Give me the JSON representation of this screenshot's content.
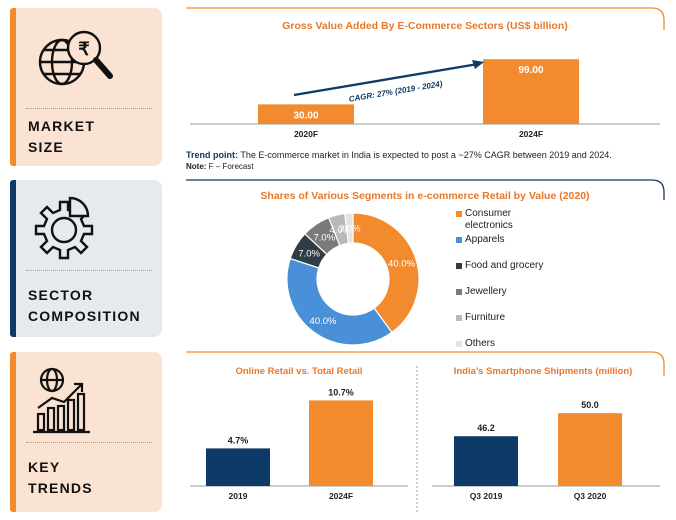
{
  "colors": {
    "orange": "#f28a2e",
    "blue": "#0d3a66",
    "lightblue": "#4a90d9",
    "peach": "#fbe3d3",
    "lightgray": "#e6e9ee",
    "dark": "#2f3d48",
    "gray": "#7a7a7a",
    "lgray": "#b9b9b9"
  },
  "sections": {
    "market": {
      "line1": "MARKET",
      "line2": "SIZE",
      "icon": "search-rupee-globe-icon"
    },
    "sector": {
      "line1": "SECTOR",
      "line2": "COMPOSITION",
      "icon": "gear-pie-icon"
    },
    "trends": {
      "line1": "KEY",
      "line2": "TRENDS",
      "icon": "globe-bar-growth-icon"
    }
  },
  "market": {
    "title": "Gross Value Added By E-Commerce Sectors (US$ billion)",
    "cagr": "CAGR: 27% (2019 - 2024)",
    "trend_label": "Trend point:",
    "trend_text": " The E-commerce market in India is expected to post a ~27% CAGR  between 2019 and 2024.",
    "note_label": "Note:",
    "note_text": " F – Forecast"
  },
  "sector": {
    "title": "Shares of Various Segments in e-commerce Retail by Value (2020)"
  },
  "online": {
    "title": "Online Retail vs. Total Retail"
  },
  "phones": {
    "title": "India’s Smartphone Shipments (million)"
  },
  "chart_data": [
    {
      "type": "bar",
      "title": "Gross Value Added By E-Commerce Sectors (US$ billion)",
      "categories": [
        "2020F",
        "2024F"
      ],
      "values": [
        30.0,
        99.0
      ],
      "labels": [
        "30.00",
        "99.00"
      ],
      "annotation": "CAGR: 27% (2019 - 2024)",
      "ylim": [
        0,
        110
      ]
    },
    {
      "type": "pie",
      "title": "Shares of Various Segments in e-commerce Retail by Value (2020)",
      "categories": [
        "Consumer electronics",
        "Apparels",
        "Food and grocery",
        "Jewellery",
        "Furniture",
        "Others"
      ],
      "values": [
        40.0,
        40.0,
        7.0,
        7.0,
        4.0,
        2.0
      ],
      "labels": [
        "40.0%",
        "40.0%",
        "7.0%",
        "7.0%",
        "4.0%",
        "2.0%"
      ],
      "legend": "right"
    },
    {
      "type": "bar",
      "title": "Online Retail vs. Total Retail",
      "categories": [
        "2019",
        "2024F"
      ],
      "values": [
        4.7,
        10.7
      ],
      "labels": [
        "4.7%",
        "10.7%"
      ],
      "ylim": [
        0,
        12
      ]
    },
    {
      "type": "bar",
      "title": "India’s Smartphone Shipments (million)",
      "categories": [
        "Q3 2019",
        "Q3 2020"
      ],
      "values": [
        46.2,
        50.0
      ],
      "labels": [
        "46.2",
        "50.0"
      ],
      "ylim": [
        38,
        52
      ]
    }
  ]
}
